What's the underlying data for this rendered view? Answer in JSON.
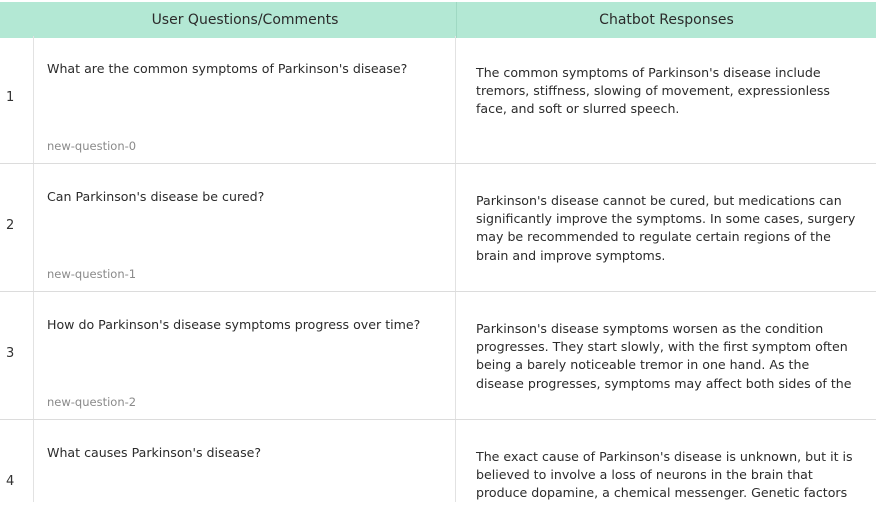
{
  "header": {
    "questions_label": "User Questions/Comments",
    "responses_label": "Chatbot Responses"
  },
  "rows": [
    {
      "num": "1",
      "question": "What are the common symptoms of Parkinson's disease?",
      "id": "new-question-0",
      "response": "The common symptoms of Parkinson's disease include tremors, stiffness, slowing of movement, expressionless face, and soft or slurred speech."
    },
    {
      "num": "2",
      "question": "Can Parkinson's disease be cured?",
      "id": "new-question-1",
      "response": "Parkinson's disease cannot be cured, but medications can significantly improve the symptoms. In some cases, surgery may be recommended to regulate certain regions of the brain and improve symptoms."
    },
    {
      "num": "3",
      "question": "How do Parkinson's disease symptoms progress over time?",
      "id": "new-question-2",
      "response": "Parkinson's disease symptoms worsen as the condition progresses. They start slowly, with the first symptom often being a barely noticeable tremor in one hand. As the disease progresses, symptoms may affect both sides of the"
    },
    {
      "num": "4",
      "question": "What causes Parkinson's disease?",
      "id": "",
      "response": "The exact cause of Parkinson's disease is unknown, but it is believed to involve a loss of neurons in the brain that produce dopamine, a chemical messenger. Genetic factors"
    }
  ]
}
